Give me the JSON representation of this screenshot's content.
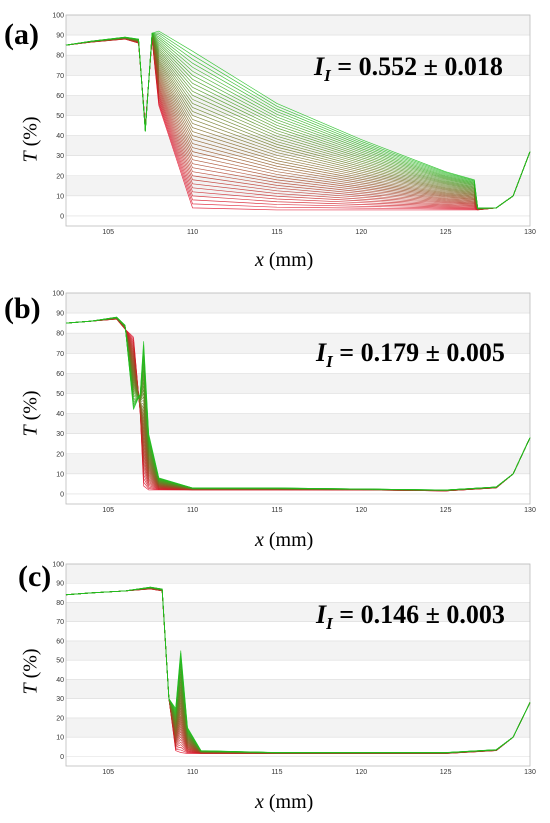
{
  "panels": [
    {
      "label": "(a)",
      "index_symbol": "I",
      "index_sub": "I",
      "index_value": "= 0.552 ± 0.018"
    },
    {
      "label": "(b)",
      "index_symbol": "I",
      "index_sub": "I",
      "index_value": "= 0.179 ± 0.005"
    },
    {
      "label": "(c)",
      "index_symbol": "I",
      "index_sub": "I",
      "index_value": "= 0.146 ± 0.003"
    }
  ],
  "axes": {
    "ylabel_var": "T",
    "ylabel_unit": "(%)",
    "xlabel_var": "x",
    "xlabel_unit": "(mm)"
  },
  "colors": {
    "early": "#e0102a",
    "late": "#1ec01e",
    "grid": "#dcdcdc",
    "band": "#f3f3f3"
  },
  "chart_data": [
    {
      "type": "line",
      "xlim": [
        102.5,
        130
      ],
      "ylim": [
        -5,
        100
      ],
      "xticks": [
        105,
        110,
        115,
        120,
        125,
        130
      ],
      "yticks": [
        0,
        10,
        20,
        30,
        40,
        50,
        60,
        70,
        80,
        90,
        100
      ],
      "grid": true,
      "series_count": 40,
      "x": [
        102.5,
        104,
        106,
        106.8,
        107.2,
        107.6,
        108,
        110,
        115,
        120,
        125,
        126.7,
        126.9,
        128,
        129,
        130
      ],
      "series": [
        {
          "values": [
            85,
            86.5,
            88,
            86,
            45,
            88,
            55,
            4,
            3,
            3,
            3,
            3,
            3,
            4,
            10,
            32
          ]
        },
        {
          "values": [
            85,
            87,
            89,
            88,
            42,
            91,
            92,
            82,
            56,
            38,
            22,
            18,
            4,
            4,
            10,
            32
          ]
        }
      ]
    },
    {
      "type": "line",
      "xlim": [
        102.5,
        130
      ],
      "ylim": [
        -5,
        100
      ],
      "xticks": [
        105,
        110,
        115,
        120,
        125,
        130
      ],
      "yticks": [
        0,
        10,
        20,
        30,
        40,
        50,
        60,
        70,
        80,
        90,
        100
      ],
      "grid": true,
      "series_count": 40,
      "x": [
        102.5,
        104,
        105.5,
        106,
        106.5,
        106.9,
        107.1,
        107.4,
        108,
        110,
        115,
        120,
        125,
        128,
        129,
        130
      ],
      "series": [
        {
          "values": [
            85,
            86,
            87,
            82,
            78,
            40,
            4,
            2,
            2,
            2,
            2,
            2,
            1.5,
            3,
            10,
            28
          ]
        },
        {
          "values": [
            85,
            86,
            88,
            84,
            42,
            50,
            76,
            30,
            8,
            3,
            3,
            2.5,
            2,
            3.5,
            10,
            28
          ]
        }
      ]
    },
    {
      "type": "line",
      "xlim": [
        102.5,
        130
      ],
      "ylim": [
        -5,
        100
      ],
      "xticks": [
        105,
        110,
        115,
        120,
        125,
        130
      ],
      "yticks": [
        0,
        10,
        20,
        30,
        40,
        50,
        60,
        70,
        80,
        90,
        100
      ],
      "grid": true,
      "series_count": 40,
      "x": [
        102.5,
        104,
        106,
        107.5,
        108.2,
        108.6,
        109,
        109.3,
        109.7,
        110.5,
        115,
        120,
        125,
        128,
        129,
        130
      ],
      "series": [
        {
          "values": [
            84,
            85,
            86,
            87,
            86,
            30,
            3,
            2,
            1.5,
            1.5,
            1.5,
            1.5,
            1.5,
            3,
            10,
            28
          ]
        },
        {
          "values": [
            84,
            85,
            86,
            88,
            87,
            30,
            25,
            55,
            15,
            3,
            2,
            2,
            2,
            3.5,
            10,
            28
          ]
        }
      ]
    }
  ]
}
